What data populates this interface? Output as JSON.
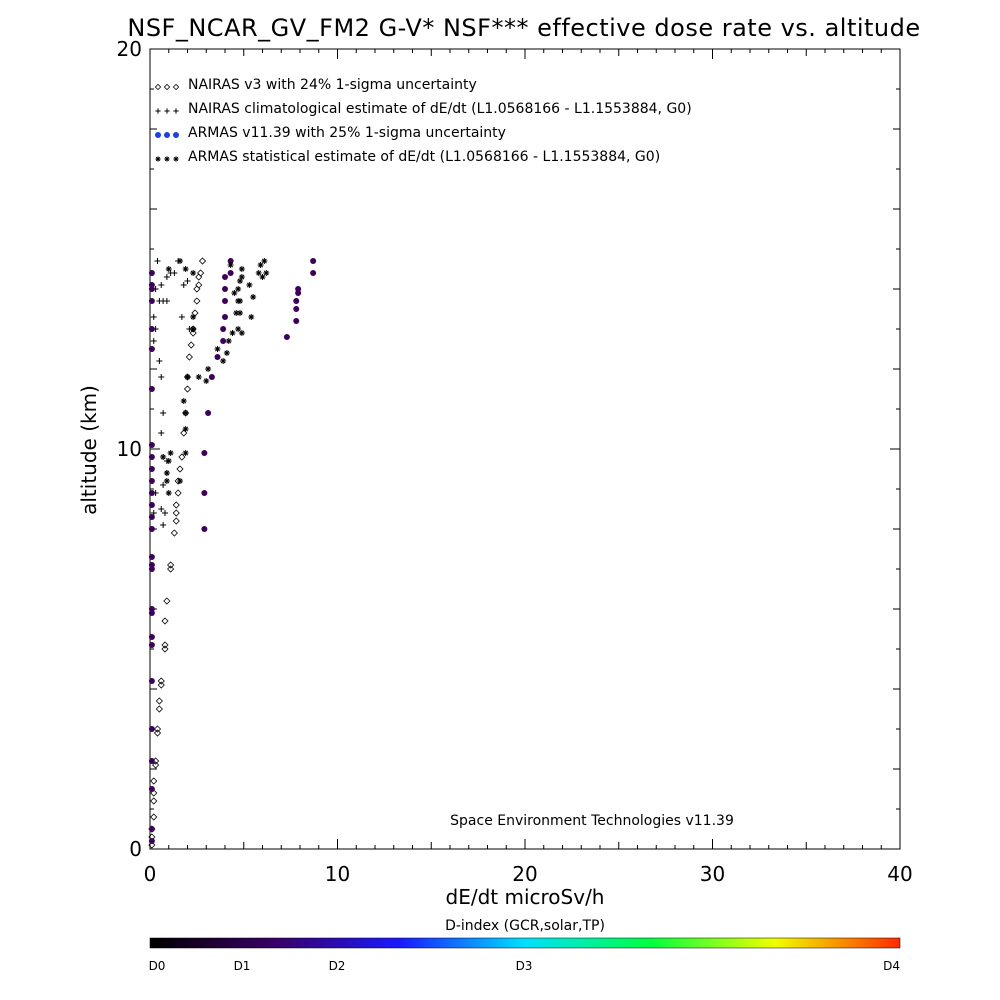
{
  "chart_data": {
    "type": "scatter",
    "title": "NSF_NCAR_GV_FM2 G-V* NSF*** effective dose rate vs. altitude",
    "xlabel": "dE/dt microSv/h",
    "ylabel": "altitude (km)",
    "xlim": [
      0,
      40
    ],
    "ylim": [
      0,
      20
    ],
    "x_ticks": [
      "0",
      "10",
      "20",
      "30",
      "40"
    ],
    "y_ticks": [
      "0",
      "10",
      "20"
    ],
    "grid": false,
    "legend_position": "top-left",
    "annotation": "Space Environment Technologies v11.39",
    "colors": {
      "armas": "#3d005a",
      "armas_legend": "#1f3fe0",
      "axis": "#000000"
    },
    "colorbar": {
      "title": "D-index (GCR,solar,TP)",
      "labels": [
        {
          "text": "D0",
          "value": 0
        },
        {
          "text": "D1",
          "value": 1
        },
        {
          "text": "D2",
          "value": 2
        },
        {
          "text": "D3",
          "value": 3
        },
        {
          "text": "D4",
          "value": 4
        }
      ],
      "stops": [
        "#000000",
        "#3a0066",
        "#1a1aff",
        "#00e0ff",
        "#00ff40",
        "#f0ff00",
        "#ff2a00"
      ]
    },
    "series": [
      {
        "name": "NAIRAS v3 with 24% 1-sigma uncertainty",
        "symbol": "diamond",
        "points": [
          [
            0.1,
            0.1
          ],
          [
            0.1,
            0.3
          ],
          [
            0.1,
            0.5
          ],
          [
            0.2,
            0.8
          ],
          [
            0.2,
            1.2
          ],
          [
            0.2,
            1.4
          ],
          [
            0.2,
            1.7
          ],
          [
            0.3,
            2.1
          ],
          [
            0.3,
            2.2
          ],
          [
            0.4,
            2.9
          ],
          [
            0.4,
            3.0
          ],
          [
            0.5,
            3.5
          ],
          [
            0.5,
            3.7
          ],
          [
            0.6,
            4.1
          ],
          [
            0.6,
            4.2
          ],
          [
            0.8,
            5.0
          ],
          [
            0.8,
            5.1
          ],
          [
            0.8,
            5.7
          ],
          [
            0.9,
            6.2
          ],
          [
            1.1,
            7.0
          ],
          [
            1.1,
            7.1
          ],
          [
            1.3,
            7.9
          ],
          [
            1.4,
            8.2
          ],
          [
            1.4,
            8.4
          ],
          [
            1.4,
            8.6
          ],
          [
            1.5,
            8.9
          ],
          [
            1.5,
            9.2
          ],
          [
            1.6,
            9.5
          ],
          [
            1.7,
            9.8
          ],
          [
            1.8,
            10.4
          ],
          [
            1.9,
            10.9
          ],
          [
            2.0,
            11.5
          ],
          [
            2.0,
            11.8
          ],
          [
            2.1,
            12.3
          ],
          [
            2.2,
            12.6
          ],
          [
            2.3,
            12.9
          ],
          [
            2.3,
            13.0
          ],
          [
            2.4,
            13.4
          ],
          [
            2.5,
            13.7
          ],
          [
            2.5,
            14.0
          ],
          [
            2.6,
            14.1
          ],
          [
            2.6,
            14.3
          ],
          [
            2.7,
            14.4
          ],
          [
            2.8,
            14.7
          ]
        ]
      },
      {
        "name": "NAIRAS climatological estimate of dE/dt (L1.0568166 - L1.1553884, G0)",
        "symbol": "plus",
        "points": [
          [
            0.1,
            12.5
          ],
          [
            0.2,
            12.7
          ],
          [
            0.2,
            13.3
          ],
          [
            0.3,
            13.0
          ],
          [
            0.5,
            12.2
          ],
          [
            0.6,
            11.8
          ],
          [
            0.6,
            10.4
          ],
          [
            0.7,
            10.9
          ],
          [
            0.7,
            9.8
          ],
          [
            0.9,
            9.7
          ],
          [
            0.9,
            9.4
          ],
          [
            0.7,
            9.1
          ],
          [
            0.6,
            8.5
          ],
          [
            0.7,
            8.1
          ],
          [
            0.8,
            8.4
          ],
          [
            0.2,
            8.4
          ],
          [
            0.3,
            8.9
          ],
          [
            0.5,
            13.7
          ],
          [
            0.7,
            13.7
          ],
          [
            0.9,
            13.7
          ],
          [
            0.3,
            14.0
          ],
          [
            0.6,
            14.1
          ],
          [
            0.9,
            14.3
          ],
          [
            1.1,
            14.4
          ],
          [
            1.3,
            14.4
          ],
          [
            1.5,
            14.7
          ],
          [
            0.4,
            14.7
          ],
          [
            1.8,
            14.1
          ],
          [
            2.0,
            14.2
          ],
          [
            1.7,
            13.3
          ],
          [
            2.1,
            13.0
          ]
        ]
      },
      {
        "name": "ARMAS v11.39 with 25% 1-sigma uncertainty",
        "symbol": "dot",
        "points": [
          [
            0.1,
            0.2
          ],
          [
            0.1,
            0.5
          ],
          [
            0.1,
            1.5
          ],
          [
            0.1,
            2.2
          ],
          [
            0.1,
            3.0
          ],
          [
            0.1,
            4.2
          ],
          [
            0.1,
            5.1
          ],
          [
            0.1,
            5.3
          ],
          [
            0.1,
            5.9
          ],
          [
            0.1,
            6.0
          ],
          [
            0.1,
            7.0
          ],
          [
            0.1,
            7.1
          ],
          [
            0.1,
            7.3
          ],
          [
            0.1,
            8.0
          ],
          [
            0.1,
            8.3
          ],
          [
            0.1,
            8.6
          ],
          [
            0.1,
            8.9
          ],
          [
            0.1,
            9.2
          ],
          [
            0.1,
            9.5
          ],
          [
            0.1,
            9.8
          ],
          [
            0.1,
            10.1
          ],
          [
            0.1,
            11.5
          ],
          [
            0.1,
            12.5
          ],
          [
            0.1,
            13.0
          ],
          [
            0.1,
            13.7
          ],
          [
            0.1,
            14.0
          ],
          [
            0.1,
            14.1
          ],
          [
            0.1,
            14.4
          ],
          [
            2.9,
            8.0
          ],
          [
            2.9,
            8.9
          ],
          [
            2.9,
            9.9
          ],
          [
            3.1,
            10.9
          ],
          [
            3.3,
            11.8
          ],
          [
            3.6,
            12.3
          ],
          [
            3.9,
            12.7
          ],
          [
            3.9,
            13.0
          ],
          [
            4.0,
            13.3
          ],
          [
            4.0,
            13.7
          ],
          [
            4.0,
            14.0
          ],
          [
            4.0,
            14.3
          ],
          [
            4.3,
            14.4
          ],
          [
            4.3,
            14.7
          ],
          [
            7.3,
            12.8
          ],
          [
            7.8,
            13.2
          ],
          [
            7.8,
            13.5
          ],
          [
            7.8,
            13.7
          ],
          [
            7.9,
            13.9
          ],
          [
            7.9,
            14.0
          ],
          [
            8.7,
            14.4
          ],
          [
            8.7,
            14.7
          ]
        ]
      },
      {
        "name": "ARMAS statistical estimate of dE/dt (L1.0568166 - L1.1553884, G0)",
        "symbol": "asterisk",
        "points": [
          [
            0.7,
            9.8
          ],
          [
            0.9,
            9.4
          ],
          [
            0.9,
            9.2
          ],
          [
            1.0,
            9.7
          ],
          [
            1.1,
            9.9
          ],
          [
            1.0,
            8.9
          ],
          [
            1.6,
            9.2
          ],
          [
            1.9,
            9.9
          ],
          [
            1.9,
            10.5
          ],
          [
            1.9,
            10.9
          ],
          [
            1.8,
            11.2
          ],
          [
            2.0,
            11.8
          ],
          [
            2.6,
            11.8
          ],
          [
            3.0,
            11.7
          ],
          [
            3.1,
            12.0
          ],
          [
            3.9,
            12.2
          ],
          [
            3.6,
            12.5
          ],
          [
            4.1,
            12.4
          ],
          [
            4.2,
            12.7
          ],
          [
            4.4,
            12.9
          ],
          [
            4.7,
            13.0
          ],
          [
            4.9,
            12.9
          ],
          [
            4.6,
            13.4
          ],
          [
            4.7,
            13.7
          ],
          [
            4.8,
            13.7
          ],
          [
            4.5,
            13.9
          ],
          [
            4.7,
            14.0
          ],
          [
            4.8,
            14.2
          ],
          [
            4.9,
            14.3
          ],
          [
            4.9,
            14.5
          ],
          [
            4.3,
            14.6
          ],
          [
            2.3,
            13.0
          ],
          [
            2.3,
            13.3
          ],
          [
            2.3,
            14.4
          ],
          [
            1.9,
            14.5
          ],
          [
            1.6,
            14.7
          ],
          [
            1.0,
            14.5
          ],
          [
            6.0,
            14.3
          ],
          [
            6.2,
            14.4
          ],
          [
            5.8,
            14.4
          ],
          [
            6.1,
            14.7
          ],
          [
            5.9,
            14.6
          ],
          [
            5.5,
            13.8
          ],
          [
            5.3,
            14.1
          ],
          [
            5.4,
            13.3
          ],
          [
            4.8,
            13.4
          ]
        ]
      }
    ]
  }
}
